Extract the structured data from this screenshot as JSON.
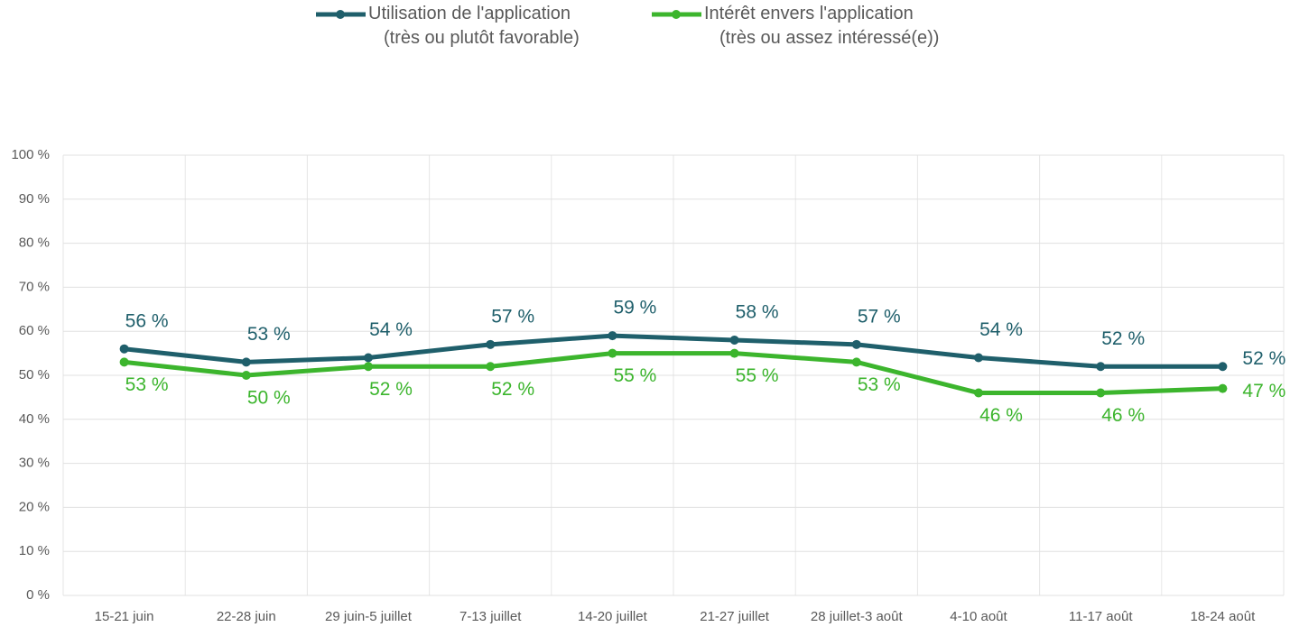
{
  "chart_data": {
    "type": "line",
    "categories": [
      "15-21 juin",
      "22-28 juin",
      "29 juin-5 juillet",
      "7-13 juillet",
      "14-20 juillet",
      "21-27 juillet",
      "28 juillet-3 août",
      "4-10 août",
      "11-17 août",
      "18-24 août"
    ],
    "series": [
      {
        "name": "Utilisation de l'application\n(très ou plutôt favorable)",
        "color": "#1f5f6b",
        "values": [
          56,
          53,
          54,
          57,
          59,
          58,
          57,
          54,
          52,
          52
        ],
        "value_labels": [
          "56 %",
          "53 %",
          "54 %",
          "57 %",
          "59 %",
          "58 %",
          "57 %",
          "54 %",
          "52 %",
          "52 %"
        ]
      },
      {
        "name": "Intérêt envers l'application\n(très ou assez intéressé(e))",
        "color": "#3cb52d",
        "values": [
          53,
          50,
          52,
          52,
          55,
          55,
          53,
          46,
          46,
          47
        ],
        "value_labels": [
          "53 %",
          "50 %",
          "52 %",
          "52 %",
          "55 %",
          "55 %",
          "53 %",
          "46 %",
          "46 %",
          "47 %"
        ]
      }
    ],
    "ylim": [
      0,
      100
    ],
    "yticks": [
      {
        "value": 0,
        "label": "0 %"
      },
      {
        "value": 10,
        "label": "10 %"
      },
      {
        "value": 20,
        "label": "20 %"
      },
      {
        "value": 30,
        "label": "30 %"
      },
      {
        "value": 40,
        "label": "40 %"
      },
      {
        "value": 50,
        "label": "50 %"
      },
      {
        "value": 60,
        "label": "60 %"
      },
      {
        "value": 70,
        "label": "70 %"
      },
      {
        "value": 80,
        "label": "80 %"
      },
      {
        "value": 90,
        "label": "90 %"
      },
      {
        "value": 100,
        "label": "100 %"
      }
    ],
    "grid": true,
    "legend": "top"
  }
}
